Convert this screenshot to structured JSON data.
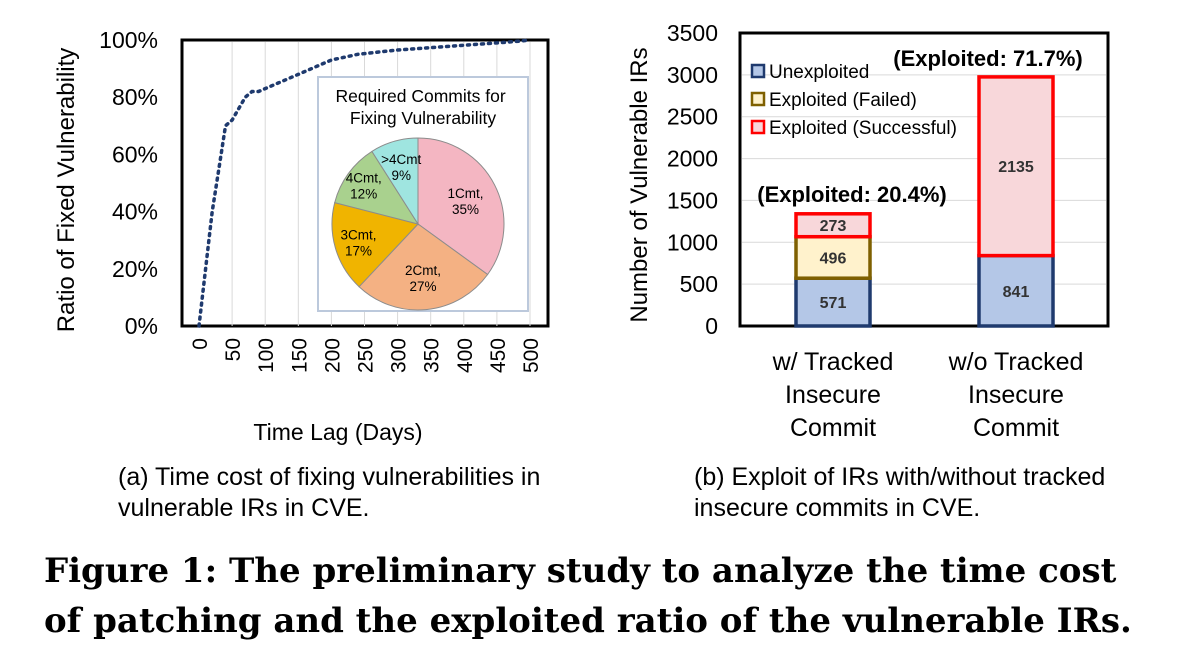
{
  "figure_title": "Figure 1: The preliminary study to analyze the time cost of patching and the exploited ratio of the vulnerable IRs.",
  "captions": {
    "a": "(a) Time cost of fixing vulnerabilities in vulnerable IRs in CVE.",
    "b": "(b) Exploit of IRs with/without tracked insecure commits in CVE."
  },
  "colors": {
    "line": "#1f3a6e",
    "unexploited_fill": "#b4c7e7",
    "unexploited_edge": "#1f3a6e",
    "failed_fill": "#fff2cc",
    "failed_edge": "#7f6000",
    "success_fill": "#f8d7da",
    "success_edge": "#ff0000",
    "pie": [
      "#f4b6c2",
      "#f4b183",
      "#f0b400",
      "#a9d18e",
      "#9fe5e0"
    ]
  },
  "chart_data": [
    {
      "type": "line",
      "xlabel": "Time Lag (Days)",
      "ylabel": "Ratio of Fixed Vulnerability",
      "xlim": [
        0,
        500
      ],
      "ylim": [
        0,
        100
      ],
      "xticks": [
        "0",
        "50",
        "100",
        "150",
        "200",
        "250",
        "300",
        "350",
        "400",
        "450",
        "500"
      ],
      "yticks": [
        "0%",
        "20%",
        "40%",
        "60%",
        "80%",
        "100%"
      ],
      "x": [
        0,
        10,
        20,
        30,
        40,
        50,
        60,
        70,
        80,
        90,
        100,
        120,
        140,
        160,
        180,
        200,
        220,
        240,
        260,
        280,
        300,
        330,
        360,
        390,
        420,
        450,
        480,
        500
      ],
      "y": [
        0,
        20,
        40,
        55,
        70,
        72,
        76,
        80,
        82,
        82,
        83,
        85,
        87,
        89,
        91,
        93,
        94,
        95,
        95.5,
        96,
        96.5,
        97,
        97.5,
        98,
        98.5,
        99,
        99.5,
        100
      ],
      "grid": "x",
      "inset": {
        "type": "pie",
        "title": "Required Commits for Fixing Vulnerability",
        "slices": [
          {
            "label": "1Cmt,",
            "pct": "35%",
            "value": 35
          },
          {
            "label": "2Cmt,",
            "pct": "27%",
            "value": 27
          },
          {
            "label": "3Cmt,",
            "pct": "17%",
            "value": 17
          },
          {
            "label": "4Cmt,",
            "pct": "12%",
            "value": 12
          },
          {
            "label": ">4Cmt",
            "pct": "9%",
            "value": 9
          }
        ]
      }
    },
    {
      "type": "bar",
      "stacked": true,
      "ylabel": "Number of Vulnerable IRs",
      "ylim": [
        0,
        3500
      ],
      "yticks": [
        "0",
        "500",
        "1000",
        "1500",
        "2000",
        "2500",
        "3000",
        "3500"
      ],
      "categories": [
        [
          "w/ Tracked",
          "Insecure",
          "Commit"
        ],
        [
          "w/o Tracked",
          "Insecure",
          "Commit"
        ]
      ],
      "series": [
        {
          "name": "Unexploited",
          "values": [
            571,
            841
          ]
        },
        {
          "name": "Exploited (Failed)",
          "values": [
            496,
            0
          ]
        },
        {
          "name": "Exploited (Successful)",
          "values": [
            273,
            2135
          ]
        }
      ],
      "annotations": [
        "(Exploited: 20.4%)",
        "(Exploited: 71.7%)"
      ],
      "legend": "top-left",
      "grid": "y"
    }
  ]
}
